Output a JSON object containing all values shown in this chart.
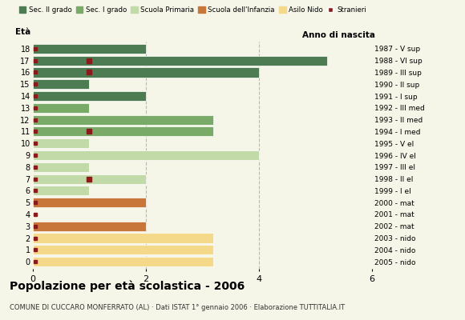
{
  "ages": [
    18,
    17,
    16,
    15,
    14,
    13,
    12,
    11,
    10,
    9,
    8,
    7,
    6,
    5,
    4,
    3,
    2,
    1,
    0
  ],
  "right_labels": [
    "1987 - V sup",
    "1988 - VI sup",
    "1989 - III sup",
    "1990 - II sup",
    "1991 - I sup",
    "1992 - III med",
    "1993 - II med",
    "1994 - I med",
    "1995 - V el",
    "1996 - IV el",
    "1997 - III el",
    "1998 - II el",
    "1999 - I el",
    "2000 - mat",
    "2001 - mat",
    "2002 - mat",
    "2003 - nido",
    "2004 - nido",
    "2005 - nido"
  ],
  "bar_values": [
    2,
    5.2,
    4.0,
    1.0,
    2.0,
    1.0,
    3.2,
    3.2,
    1.0,
    4.0,
    1.0,
    2.0,
    1.0,
    2.0,
    0.0,
    2.0,
    3.2,
    3.2,
    3.2
  ],
  "bar_colors": [
    "#4d7c52",
    "#4d7c52",
    "#4d7c52",
    "#4d7c52",
    "#4d7c52",
    "#7aaa68",
    "#7aaa68",
    "#7aaa68",
    "#c2d9a8",
    "#c2d9a8",
    "#c2d9a8",
    "#c2d9a8",
    "#c2d9a8",
    "#c8763a",
    "#c8763a",
    "#c8763a",
    "#f5d98a",
    "#f5d98a",
    "#f5d98a"
  ],
  "stranieri_color": "#8b1a1a",
  "stranieri_ages": [
    18,
    17,
    16,
    15,
    14,
    13,
    12,
    11,
    10,
    9,
    8,
    7,
    6,
    5,
    4,
    3,
    2,
    1,
    0
  ],
  "stranieri_special": [
    17,
    16,
    11,
    7
  ],
  "legend_labels": [
    "Sec. II grado",
    "Sec. I grado",
    "Scuola Primaria",
    "Scuola dell'Infanzia",
    "Asilo Nido",
    "Stranieri"
  ],
  "legend_colors": [
    "#4d7c52",
    "#7aaa68",
    "#c2d9a8",
    "#c8763a",
    "#f5d98a",
    "#8b1a1a"
  ],
  "title": "Popolazione per età scolastica - 2006",
  "subtitle": "COMUNE DI CUCCARO MONFERRATO (AL) · Dati ISTAT 1° gennaio 2006 · Elaborazione TUTTITALIA.IT",
  "xlabel_left": "Età",
  "xlabel_right": "Anno di nascita",
  "xlim": [
    0,
    6
  ],
  "xticks": [
    0,
    2,
    4,
    6
  ],
  "background_color": "#f5f5e8",
  "grid_color": "#aaaaaa"
}
